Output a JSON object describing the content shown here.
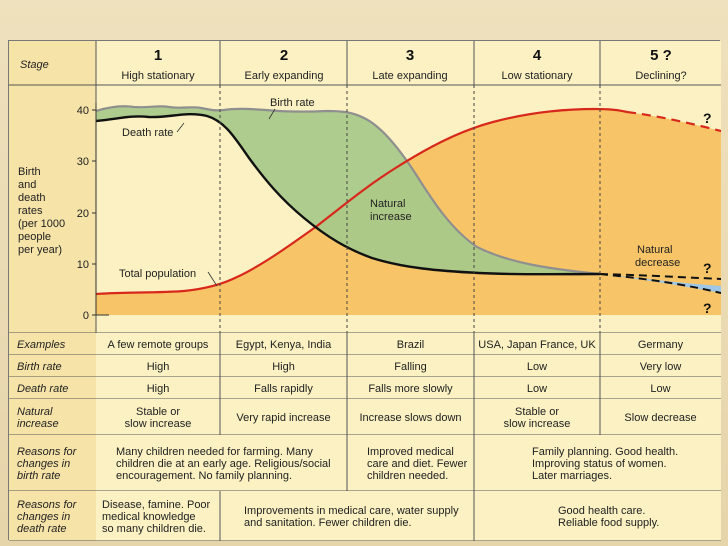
{
  "header": {
    "stage_label": "Stage",
    "stages": [
      {
        "num": "1",
        "name": "High stationary"
      },
      {
        "num": "2",
        "name": "Early expanding"
      },
      {
        "num": "3",
        "name": "Late expanding"
      },
      {
        "num": "4",
        "name": "Low stationary"
      },
      {
        "num": "5 ?",
        "name": "Declining?"
      }
    ]
  },
  "chart": {
    "ylabel_lines": [
      "Birth",
      "and",
      "death",
      "rates",
      "(per 1000",
      "people",
      "per year)"
    ],
    "yticks": [
      "40",
      "30",
      "20",
      "10",
      "0"
    ],
    "labels": {
      "birth_rate": "Birth rate",
      "death_rate": "Death rate",
      "total_population": "Total population",
      "natural_increase_1": "Natural",
      "natural_increase_2": "increase",
      "natural_decrease_1": "Natural",
      "natural_decrease_2": "decrease",
      "q": "?"
    },
    "colors": {
      "birth_fill": "#a9c98a",
      "population_fill": "#f7c567",
      "decrease_fill": "#9fc7e8",
      "population_line": "#d8281c",
      "death_line": "#111111",
      "birth_line": "#8f8f8f"
    }
  },
  "table": {
    "rows": [
      {
        "label": "Examples",
        "cells": [
          "A few remote groups",
          "Egypt, Kenya, India",
          "Brazil",
          "USA, Japan France, UK",
          "Germany"
        ]
      },
      {
        "label": "Birth rate",
        "cells": [
          "High",
          "High",
          "Falling",
          "Low",
          "Very low"
        ]
      },
      {
        "label": "Death rate",
        "cells": [
          "High",
          "Falls rapidly",
          "Falls more slowly",
          "Low",
          "Low"
        ]
      },
      {
        "label": [
          "Natural",
          "increase"
        ],
        "cells": [
          [
            "Stable or",
            "slow increase"
          ],
          [
            "Very rapid increase"
          ],
          [
            "Increase slows down"
          ],
          [
            "Stable or",
            "slow increase"
          ],
          [
            "Slow decrease"
          ]
        ]
      },
      {
        "label": [
          "Reasons for",
          "changes in",
          "birth rate"
        ],
        "spans": [
          [
            "Many children needed for farming. Many",
            "children die at an early age. Religious/social",
            "encouragement. No family planning."
          ],
          [
            "Improved medical",
            "care and diet. Fewer",
            "children needed."
          ],
          [
            "Family planning. Good health.",
            "Improving status of women.",
            "Later marriages."
          ]
        ]
      },
      {
        "label": [
          "Reasons for",
          "changes in",
          "death rate"
        ],
        "spans": [
          [
            "Disease, famine. Poor",
            "medical knowledge",
            "so many children die."
          ],
          [
            "Improvements in medical care, water supply",
            "and sanitation. Fewer children die."
          ],
          [
            "Good health care.",
            "Reliable food supply."
          ]
        ]
      }
    ]
  }
}
